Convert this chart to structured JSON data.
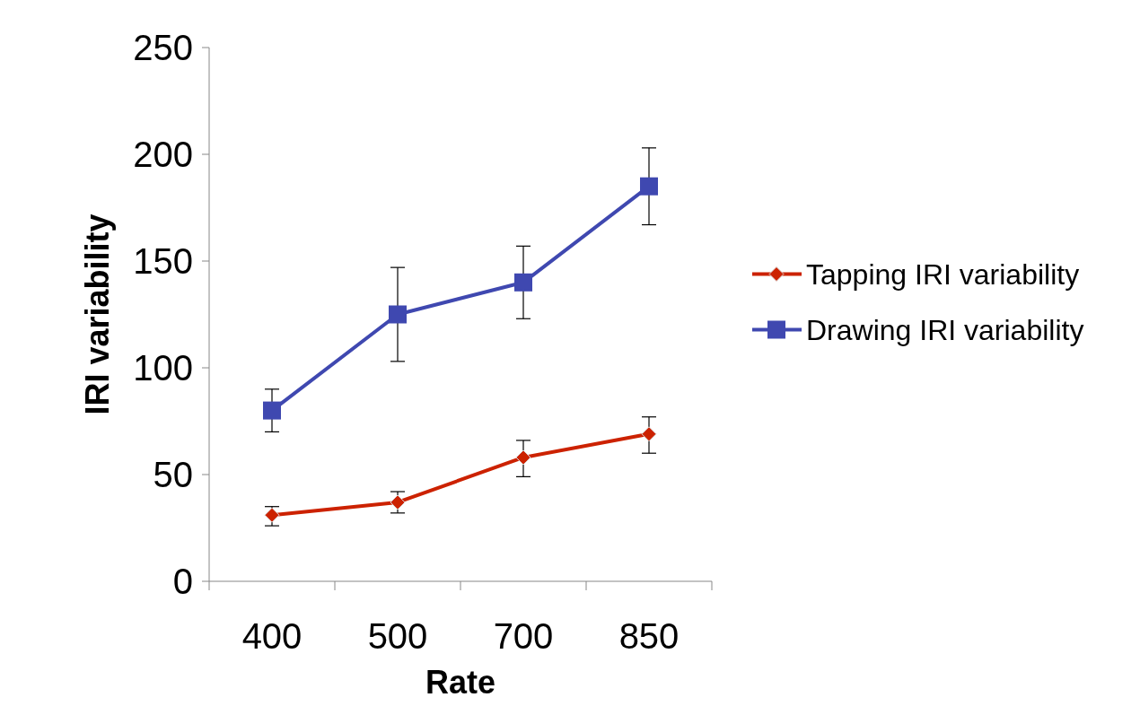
{
  "chart_data": {
    "type": "line",
    "xlabel": "Rate",
    "ylabel": "IRI variability",
    "categories": [
      "400",
      "500",
      "700",
      "850"
    ],
    "ylim": [
      0,
      250
    ],
    "yticks": [
      0,
      50,
      100,
      150,
      200,
      250
    ],
    "grid": false,
    "legend": "right",
    "line_style": "solid",
    "series": [
      {
        "name": "Tapping IRI variability",
        "color": "#cc2200",
        "marker": "diamond",
        "values": [
          31,
          37,
          58,
          69
        ],
        "errors": [
          [
            26,
            35
          ],
          [
            32,
            42
          ],
          [
            49,
            66
          ],
          [
            60,
            77
          ]
        ]
      },
      {
        "name": "Drawing IRI variability",
        "color": "#3f48b0",
        "marker": "square",
        "values": [
          80,
          125,
          140,
          185
        ],
        "errors": [
          [
            70,
            90
          ],
          [
            103,
            147
          ],
          [
            123,
            157
          ],
          [
            167,
            203
          ]
        ]
      }
    ]
  }
}
